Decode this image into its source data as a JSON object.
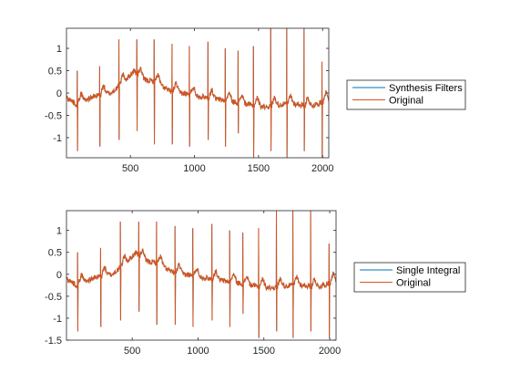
{
  "colors": {
    "series_blue": "#0072BD",
    "series_orange": "#D95319",
    "axis": "#262626",
    "legend_border": "#262626",
    "background": "#ffffff"
  },
  "chart_data": [
    {
      "type": "line",
      "xlim": [
        1,
        2048
      ],
      "ylim": [
        -1.45,
        1.45
      ],
      "xticks": [
        500,
        1000,
        1500,
        2000
      ],
      "yticks": [
        -1,
        -0.5,
        0,
        0.5,
        1
      ],
      "xtick_labels": [
        "500",
        "1000",
        "1500",
        "2000"
      ],
      "ytick_labels": [
        "-1",
        "-0.5",
        "0",
        "0.5",
        "1"
      ],
      "grid": false,
      "legend_position": "right-outside",
      "series": [
        {
          "name": "Synthesis Filters",
          "color": "#0072BD"
        },
        {
          "name": "Original",
          "color": "#D95319"
        }
      ],
      "baseline": [
        [
          1,
          -0.1
        ],
        [
          80,
          -0.25
        ],
        [
          150,
          -0.15
        ],
        [
          250,
          -0.05
        ],
        [
          350,
          0.0
        ],
        [
          450,
          0.25
        ],
        [
          530,
          0.5
        ],
        [
          600,
          0.3
        ],
        [
          700,
          0.25
        ],
        [
          800,
          0.05
        ],
        [
          900,
          0.0
        ],
        [
          1000,
          -0.05
        ],
        [
          1100,
          -0.1
        ],
        [
          1200,
          -0.15
        ],
        [
          1300,
          -0.2
        ],
        [
          1400,
          -0.25
        ],
        [
          1500,
          -0.3
        ],
        [
          1600,
          -0.3
        ],
        [
          1700,
          -0.25
        ],
        [
          1800,
          -0.25
        ],
        [
          1900,
          -0.3
        ],
        [
          2048,
          -0.15
        ]
      ],
      "spikes": [
        {
          "x": 85,
          "top": 0.5,
          "bottom": -1.3
        },
        {
          "x": 260,
          "top": 0.6,
          "bottom": -1.2
        },
        {
          "x": 410,
          "top": 1.2,
          "bottom": -1.05
        },
        {
          "x": 550,
          "top": 1.2,
          "bottom": -0.85
        },
        {
          "x": 685,
          "top": 1.2,
          "bottom": -1.15
        },
        {
          "x": 825,
          "top": 1.1,
          "bottom": -1.15
        },
        {
          "x": 960,
          "top": 1.05,
          "bottom": -1.2
        },
        {
          "x": 1105,
          "top": 1.15,
          "bottom": -1.05
        },
        {
          "x": 1240,
          "top": 1.0,
          "bottom": -1.2
        },
        {
          "x": 1340,
          "top": 0.95,
          "bottom": -0.9
        },
        {
          "x": 1460,
          "top": 1.05,
          "bottom": -1.45
        },
        {
          "x": 1595,
          "top": 1.45,
          "bottom": -1.3
        },
        {
          "x": 1720,
          "top": 1.45,
          "bottom": -1.45
        },
        {
          "x": 1855,
          "top": 1.45,
          "bottom": -1.3
        },
        {
          "x": 1995,
          "top": 0.7,
          "bottom": -1.45
        }
      ]
    },
    {
      "type": "line",
      "xlim": [
        1,
        2048
      ],
      "ylim": [
        -1.5,
        1.45
      ],
      "xticks": [
        500,
        1000,
        1500,
        2000
      ],
      "yticks": [
        -1.5,
        -1,
        -0.5,
        0,
        0.5,
        1
      ],
      "xtick_labels": [
        "500",
        "1000",
        "1500",
        "2000"
      ],
      "ytick_labels": [
        "-1.5",
        "-1",
        "-0.5",
        "0",
        "0.5",
        "1"
      ],
      "grid": false,
      "legend_position": "right-outside",
      "series": [
        {
          "name": "Single Integral",
          "color": "#0072BD"
        },
        {
          "name": "Original",
          "color": "#D95319"
        }
      ],
      "baseline": [
        [
          1,
          -0.1
        ],
        [
          80,
          -0.25
        ],
        [
          150,
          -0.15
        ],
        [
          250,
          -0.05
        ],
        [
          350,
          0.0
        ],
        [
          450,
          0.25
        ],
        [
          530,
          0.5
        ],
        [
          600,
          0.3
        ],
        [
          700,
          0.25
        ],
        [
          800,
          0.05
        ],
        [
          900,
          0.0
        ],
        [
          1000,
          -0.05
        ],
        [
          1100,
          -0.1
        ],
        [
          1200,
          -0.15
        ],
        [
          1300,
          -0.2
        ],
        [
          1400,
          -0.25
        ],
        [
          1500,
          -0.3
        ],
        [
          1600,
          -0.3
        ],
        [
          1700,
          -0.25
        ],
        [
          1800,
          -0.25
        ],
        [
          1900,
          -0.3
        ],
        [
          2048,
          -0.15
        ]
      ],
      "spikes": [
        {
          "x": 85,
          "top": 0.5,
          "bottom": -1.3
        },
        {
          "x": 260,
          "top": 0.6,
          "bottom": -1.2
        },
        {
          "x": 410,
          "top": 1.2,
          "bottom": -1.05
        },
        {
          "x": 550,
          "top": 1.2,
          "bottom": -0.85
        },
        {
          "x": 685,
          "top": 1.2,
          "bottom": -1.15
        },
        {
          "x": 825,
          "top": 1.1,
          "bottom": -1.15
        },
        {
          "x": 960,
          "top": 1.05,
          "bottom": -1.2
        },
        {
          "x": 1105,
          "top": 1.15,
          "bottom": -1.05
        },
        {
          "x": 1240,
          "top": 1.0,
          "bottom": -1.2
        },
        {
          "x": 1340,
          "top": 0.95,
          "bottom": -0.9
        },
        {
          "x": 1460,
          "top": 1.05,
          "bottom": -1.45
        },
        {
          "x": 1595,
          "top": 1.45,
          "bottom": -1.3
        },
        {
          "x": 1720,
          "top": 1.45,
          "bottom": -1.45
        },
        {
          "x": 1855,
          "top": 1.45,
          "bottom": -1.3
        },
        {
          "x": 1995,
          "top": 0.7,
          "bottom": -1.45
        }
      ]
    }
  ]
}
